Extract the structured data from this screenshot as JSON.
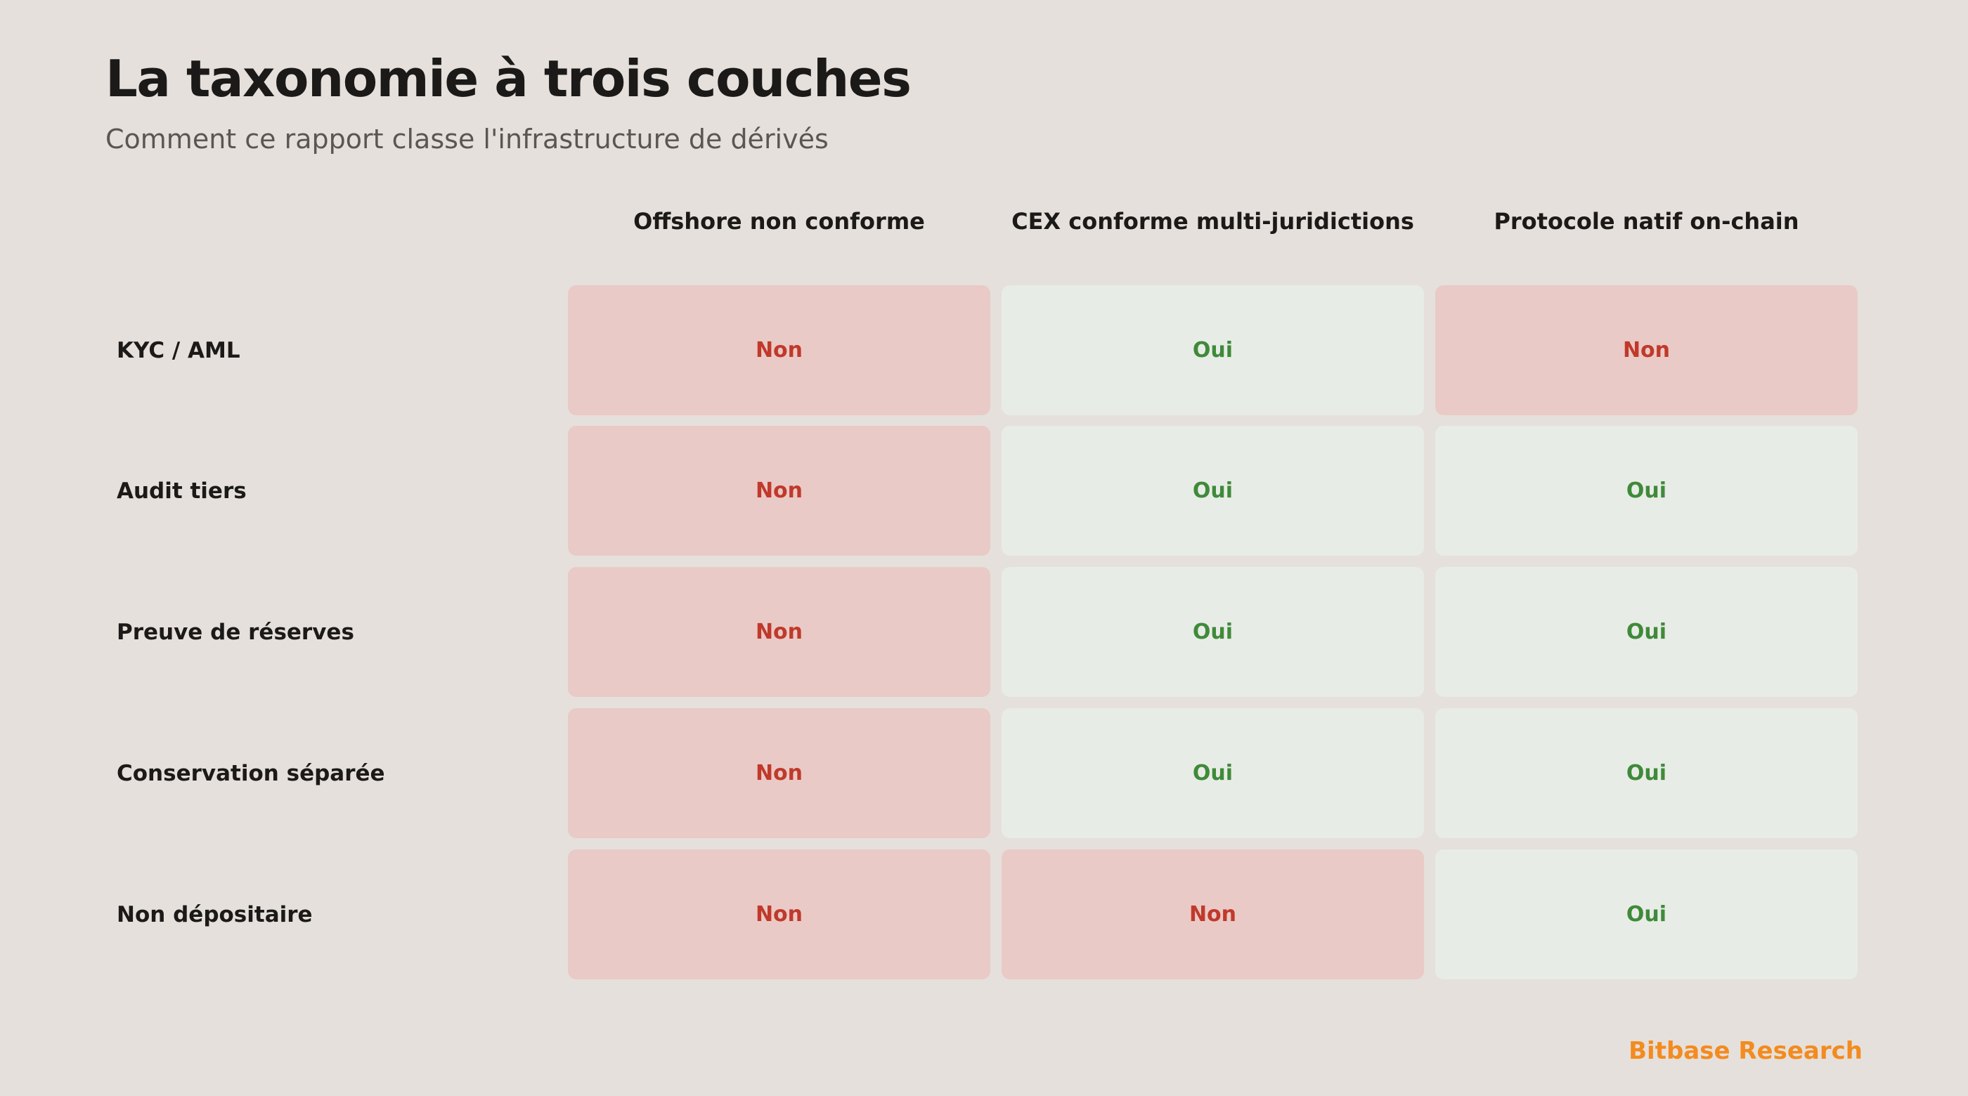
{
  "header": {
    "title": "La taxonomie à trois couches",
    "subtitle": "Comment ce rapport classe l'infrastructure de dérivés"
  },
  "table": {
    "columns": [
      "Offshore non conforme",
      "CEX conforme multi-juridictions",
      "Protocole natif on-chain"
    ],
    "rows": [
      {
        "label": "KYC / AML",
        "cells": [
          "Non",
          "Oui",
          "Non"
        ]
      },
      {
        "label": "Audit tiers",
        "cells": [
          "Non",
          "Oui",
          "Oui"
        ]
      },
      {
        "label": "Preuve de réserves",
        "cells": [
          "Non",
          "Oui",
          "Oui"
        ]
      },
      {
        "label": "Conservation séparée",
        "cells": [
          "Non",
          "Oui",
          "Oui"
        ]
      },
      {
        "label": "Non dépositaire",
        "cells": [
          "Non",
          "Non",
          "Oui"
        ]
      }
    ]
  },
  "colors": {
    "no_background": "#e9cac6",
    "no_text": "#c0392b",
    "yes_background": "#e8ece6",
    "yes_text": "#3f8a3a",
    "brand": "#f38b1f"
  },
  "footer": {
    "brand": "Bitbase Research"
  }
}
